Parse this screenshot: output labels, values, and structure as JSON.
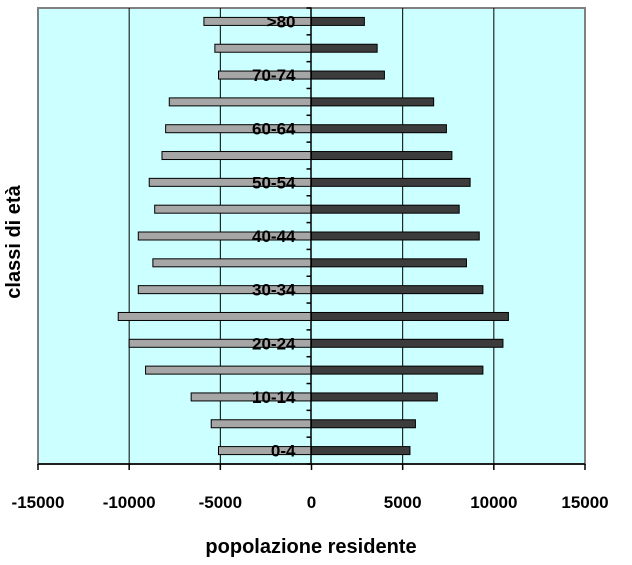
{
  "chart_data": {
    "type": "bar",
    "orientation": "horizontal",
    "xlabel": "popolazione residente",
    "ylabel": "classi di età",
    "xlim": [
      -15000,
      15000
    ],
    "xticks": [
      "-15000",
      "-10000",
      "-5000",
      "0",
      "5000",
      "10000",
      "15000"
    ],
    "xtick_values": [
      -15000,
      -10000,
      -5000,
      0,
      5000,
      10000,
      15000
    ],
    "grid": "vertical",
    "categories": [
      "0-4",
      "5-9",
      "10-14",
      "15-19",
      "20-24",
      "25-29",
      "30-34",
      "35-39",
      "40-44",
      "45-49",
      "50-54",
      "55-59",
      "60-64",
      "65-69",
      "70-74",
      "75-79",
      ">80"
    ],
    "category_labels_shown": [
      "0-4",
      "10-14",
      "20-24",
      "30-34",
      "40-44",
      "50-54",
      "60-64",
      "70-74",
      ">80"
    ],
    "series": [
      {
        "values": [
          -5100,
          -5500,
          -6600,
          -9100,
          -10000,
          -10600,
          -9500,
          -8700,
          -9500,
          -8600,
          -8900,
          -8200,
          -8000,
          -7800,
          -5100,
          -5300,
          -5900
        ]
      },
      {
        "values": [
          5400,
          5700,
          6900,
          9400,
          10500,
          10800,
          9400,
          8500,
          9200,
          8100,
          8700,
          7700,
          7400,
          6700,
          4000,
          3600,
          2900
        ]
      }
    ],
    "colors": {
      "left": "#a6a6a6",
      "right": "#3c3c3c",
      "plot_bg": "#ccffff",
      "border": "#808080"
    }
  }
}
